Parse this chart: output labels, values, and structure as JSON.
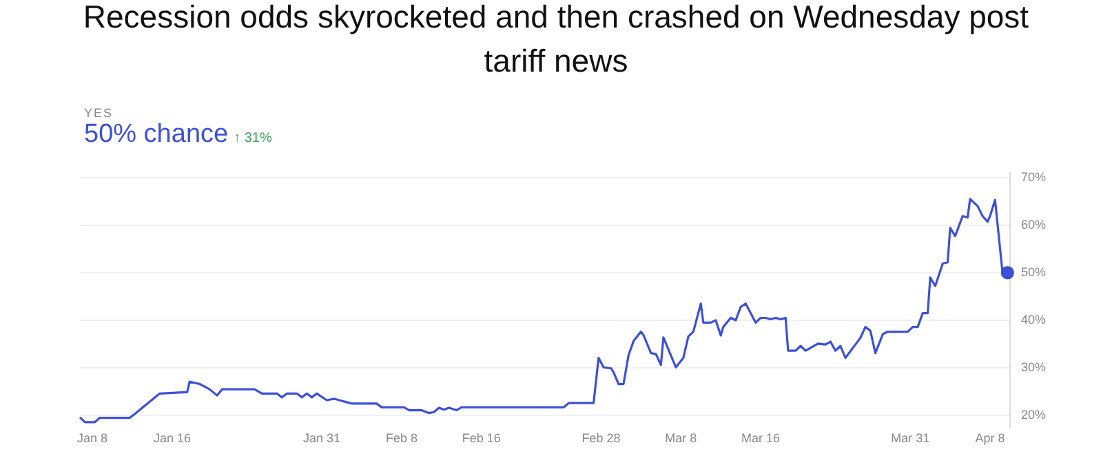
{
  "chart_data": {
    "type": "line",
    "title": "Recession odds skyrocketed and then crashed on Wednesday post tariff news",
    "annotations": [
      "YES",
      "50% chance",
      "↑ 31%"
    ],
    "x": [
      "--01-06T18:00",
      "--01-07T06:00",
      "--01-08T06:00",
      "--01-08T18:00",
      "--01-11T18:00",
      "--01-12T06:00",
      "--01-14T18:00",
      "--01-17T12:00",
      "--01-17T18:00",
      "--01-18T18:00",
      "--01-19T18:00",
      "--01-20T12:00",
      "--01-21T00:00",
      "--01-24T06:00",
      "--01-25T00:00",
      "--01-26T12:00",
      "--01-27T00:00",
      "--01-27T12:00",
      "--01-28T12:00",
      "--01-29T00:00",
      "--01-29T12:00",
      "--01-30T00:00",
      "--01-30T12:00",
      "--01-31T12:00",
      "--02-01T06:00",
      "--02-01T18:00",
      "--02-03T00:00",
      "--02-05T12:00",
      "--02-06T00:00",
      "--02-08T06:00",
      "--02-08T18:00",
      "--02-10T00:00",
      "--02-10T18:00",
      "--02-11T06:00",
      "--02-11T18:00",
      "--02-12T06:00",
      "--02-12T18:00",
      "--02-13T12:00",
      "--02-14T00:00",
      "--02-24T06:00",
      "--02-24T18:00",
      "--02-27T06:00",
      "--02-27T18:00",
      "--02-28T06:00",
      "--03-01T00:00",
      "--03-01T06:00",
      "--03-01T18:00",
      "--03-02T06:00",
      "--03-02T18:00",
      "--03-03T06:00",
      "--03-04T00:00",
      "--03-04T06:00",
      "--03-05T00:00",
      "--03-05T12:00",
      "--03-06T00:00",
      "--03-06T06:00",
      "--03-07T12:00",
      "--03-08T06:00",
      "--03-08T18:00",
      "--03-09T06:00",
      "--03-10T00:00",
      "--03-10T06:00",
      "--03-11T00:00",
      "--03-11T12:00",
      "--03-12T00:00",
      "--03-12T06:00",
      "--03-13T00:00",
      "--03-13T12:00",
      "--03-14T00:00",
      "--03-14T12:00",
      "--03-15T12:00",
      "--03-16T00:00",
      "--03-16T12:00",
      "--03-17T00:00",
      "--03-17T12:00",
      "--03-18T00:00",
      "--03-18T12:00",
      "--03-18T18:00",
      "--03-19T12:00",
      "--03-20T00:00",
      "--03-20T12:00",
      "--03-21T18:00",
      "--03-22T12:00",
      "--03-23T00:00",
      "--03-23T12:00",
      "--03-24T00:00",
      "--03-24T12:00",
      "--03-25T18:00",
      "--03-26T00:00",
      "--03-26T12:00",
      "--03-27T00:00",
      "--03-27T12:00",
      "--03-28T06:00",
      "--03-28T18:00",
      "--03-30T18:00",
      "--03-31T06:00",
      "--03-31T18:00",
      "--04-01T06:00",
      "--04-01T18:00",
      "--04-02T00:00",
      "--04-02T12:00",
      "--04-03T06:00",
      "--04-03T18:00",
      "--04-04T00:00",
      "--04-04T12:00",
      "--04-05T06:00",
      "--04-05T18:00",
      "--04-06T00:00",
      "--04-06T18:00",
      "--04-07T06:00",
      "--04-07T18:00",
      "--04-08T00:00",
      "--04-08T12:00",
      "--04-09T06:00",
      "--04-09T18:00"
    ],
    "series": [
      {
        "color": "#3d50d8",
        "values": [
          19.6,
          18.6,
          18.6,
          19.5,
          19.5,
          20.3,
          24.6,
          24.9,
          27.1,
          26.6,
          25.5,
          24.2,
          25.5,
          25.5,
          24.6,
          24.6,
          23.8,
          24.6,
          24.6,
          23.8,
          24.6,
          23.8,
          24.6,
          23.2,
          23.5,
          23.2,
          22.5,
          22.5,
          21.7,
          21.7,
          21.1,
          21.1,
          20.5,
          20.7,
          21.6,
          21.2,
          21.6,
          21.1,
          21.7,
          21.7,
          22.6,
          22.6,
          32.1,
          30.1,
          29.9,
          29.1,
          26.6,
          26.6,
          32.6,
          35.6,
          37.6,
          36.9,
          33.1,
          32.9,
          30.6,
          36.4,
          30.1,
          32.1,
          36.6,
          37.6,
          43.5,
          39.5,
          39.5,
          40.0,
          36.8,
          38.6,
          40.5,
          40.0,
          42.8,
          43.5,
          39.5,
          40.5,
          40.5,
          40.2,
          40.5,
          40.2,
          40.5,
          33.6,
          33.6,
          34.6,
          33.6,
          35.1,
          34.9,
          35.5,
          33.6,
          34.6,
          32.1,
          35.6,
          36.3,
          38.6,
          37.8,
          33.1,
          37.1,
          37.6,
          37.6,
          38.6,
          38.6,
          41.5,
          41.5,
          49.0,
          47.2,
          51.9,
          52.2,
          59.4,
          57.7,
          61.9,
          61.6,
          65.5,
          64.0,
          61.9,
          60.7,
          61.9,
          65.3,
          50.0,
          50.0
        ]
      }
    ],
    "xlim": [
      "--01-06T18:00",
      "--04-10T00:00"
    ],
    "xticks": [
      {
        "value": "--01-08",
        "label": "Jan 8"
      },
      {
        "value": "--01-16",
        "label": "Jan 16"
      },
      {
        "value": "--01-31",
        "label": "Jan 31"
      },
      {
        "value": "--02-08",
        "label": "Feb 8"
      },
      {
        "value": "--02-16",
        "label": "Feb 16"
      },
      {
        "value": "--02-28",
        "label": "Feb 28"
      },
      {
        "value": "--03-08",
        "label": "Mar 8"
      },
      {
        "value": "--03-16",
        "label": "Mar 16"
      },
      {
        "value": "--03-31",
        "label": "Mar 31"
      },
      {
        "value": "--04-08",
        "label": "Apr 8"
      }
    ],
    "ylim": [
      17.5,
      71
    ],
    "yticks": [
      {
        "value": 20,
        "label": "20%"
      },
      {
        "value": 30,
        "label": "30%"
      },
      {
        "value": 40,
        "label": "40%"
      },
      {
        "value": 50,
        "label": "50%"
      },
      {
        "value": 60,
        "label": "60%"
      },
      {
        "value": 70,
        "label": "70%"
      }
    ],
    "grid": "y",
    "legend": false,
    "line_style": "solid"
  }
}
